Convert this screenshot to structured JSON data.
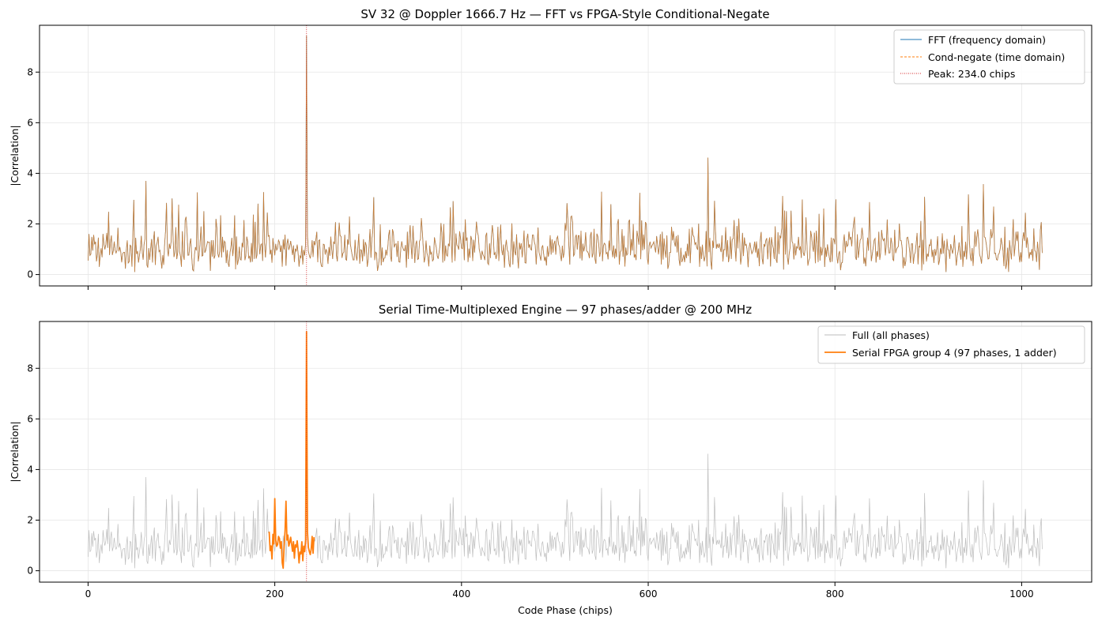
{
  "chart_data": [
    {
      "type": "line",
      "title": "SV 32 @ Doppler 1666.7 Hz — FFT vs FPGA-Style Conditional-Negate",
      "xlabel": "",
      "ylabel": "|Correlation|",
      "xlim": [
        -52,
        1075
      ],
      "ylim": [
        -0.45,
        9.85
      ],
      "xticks": [
        0,
        200,
        400,
        600,
        800,
        1000
      ],
      "yticks": [
        0,
        2,
        4,
        6,
        8
      ],
      "show_x_tick_labels": false,
      "grid": true,
      "legend_position": "top-right",
      "series": [
        {
          "name": "FFT (frequency domain)",
          "color": "#1f77b4",
          "style": "solid",
          "x_range": [
            0,
            1022
          ],
          "seed": 32,
          "noise_mean": 1.2,
          "noise_range": [
            0.1,
            3.7
          ],
          "features": [
            {
              "x": 234,
              "y": 9.45
            },
            {
              "x": 664,
              "y": 4.62
            }
          ]
        },
        {
          "name": "Cond-negate (time domain)",
          "color": "#ff7f0e",
          "style": "dashed",
          "same_as": 0
        },
        {
          "name": "Peak: 234.0 chips",
          "color": "#d62728",
          "style": "dotted",
          "vline_x": 234.0
        }
      ]
    },
    {
      "type": "line",
      "title": "Serial Time-Multiplexed Engine — 97 phases/adder @ 200 MHz",
      "xlabel": "Code Phase (chips)",
      "ylabel": "|Correlation|",
      "xlim": [
        -52,
        1075
      ],
      "ylim": [
        -0.45,
        9.85
      ],
      "xticks": [
        0,
        200,
        400,
        600,
        800,
        1000
      ],
      "yticks": [
        0,
        2,
        4,
        6,
        8
      ],
      "show_x_tick_labels": true,
      "grid": true,
      "legend_position": "top-right",
      "series": [
        {
          "name": "Full (all phases)",
          "color": "#bdbdbd",
          "style": "solid",
          "same_as_chart": 0
        },
        {
          "name": "Serial FPGA group 4 (97 phases, 1 adder)",
          "color": "#ff7f0e",
          "style": "solid",
          "x_range": [
            194,
            242
          ],
          "highlight": [
            {
              "x": 200,
              "y": 2.85
            },
            {
              "x": 212,
              "y": 2.75
            },
            {
              "x": 234,
              "y": 9.45
            },
            {
              "x": 209,
              "y": 0.1
            }
          ]
        },
        {
          "name": "",
          "color": "#d62728",
          "style": "dotted",
          "vline_x": 234.0
        }
      ]
    }
  ]
}
